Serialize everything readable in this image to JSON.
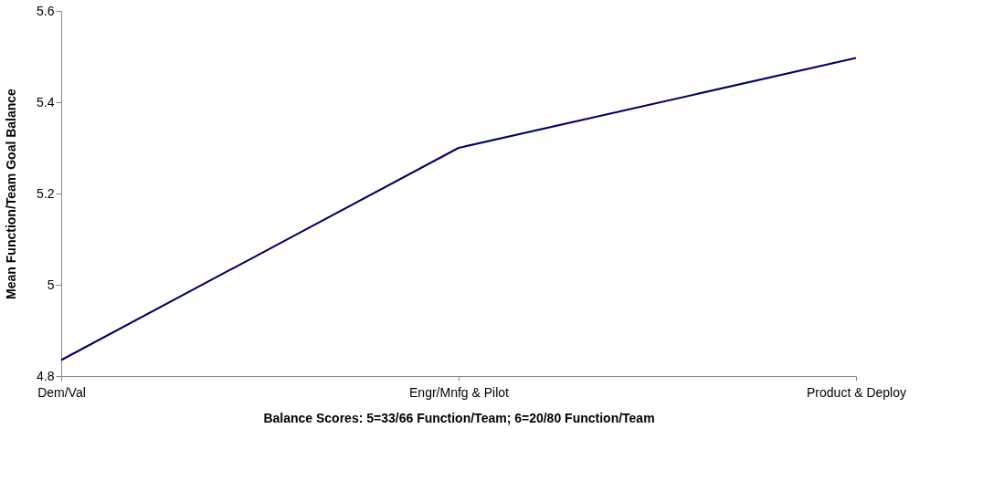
{
  "chart_data": {
    "type": "line",
    "xlabel": "Balance Scores: 5=33/66 Function/Team; 6=20/80 Function/Team",
    "ylabel": "Mean Function/Team Goal Balance",
    "categories": [
      "Dem/Val",
      "Engr/Mnfg & Pilot",
      "Product & Deploy"
    ],
    "series": [
      {
        "color": "#000066",
        "values": [
          4.835,
          5.3,
          5.497
        ]
      }
    ],
    "ylim": [
      4.8,
      5.6
    ],
    "yticks": [
      4.8,
      5,
      5.2,
      5.4,
      5.6
    ],
    "grid": false,
    "marker": "none",
    "line_style": "solid"
  }
}
